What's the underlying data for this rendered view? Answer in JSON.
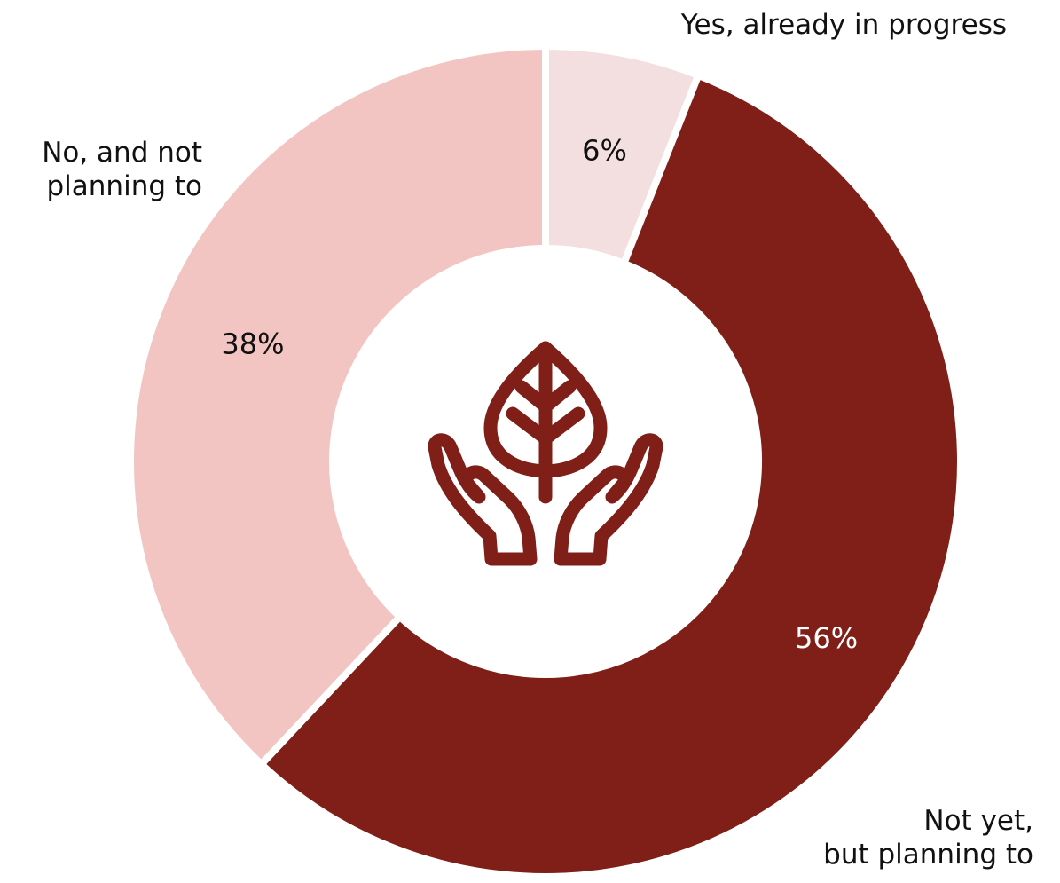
{
  "chart_data": {
    "type": "pie",
    "variant": "donut",
    "title": "",
    "categories": [
      "Yes, already in progress",
      "Not yet, but planning to",
      "No, and not planning to"
    ],
    "values": [
      6,
      56,
      38
    ],
    "value_labels": [
      "6%",
      "56%",
      "38%"
    ],
    "colors": [
      "#f4dfe0",
      "#7f1f18",
      "#f2c5c2"
    ],
    "label_text_colors": [
      "#111111",
      "#ffffff",
      "#111111"
    ],
    "start_angle_deg": 0,
    "direction": "clockwise",
    "legend": "none",
    "center_icon": "hands-holding-leaf-icon",
    "center_icon_color": "#7f1f18"
  }
}
